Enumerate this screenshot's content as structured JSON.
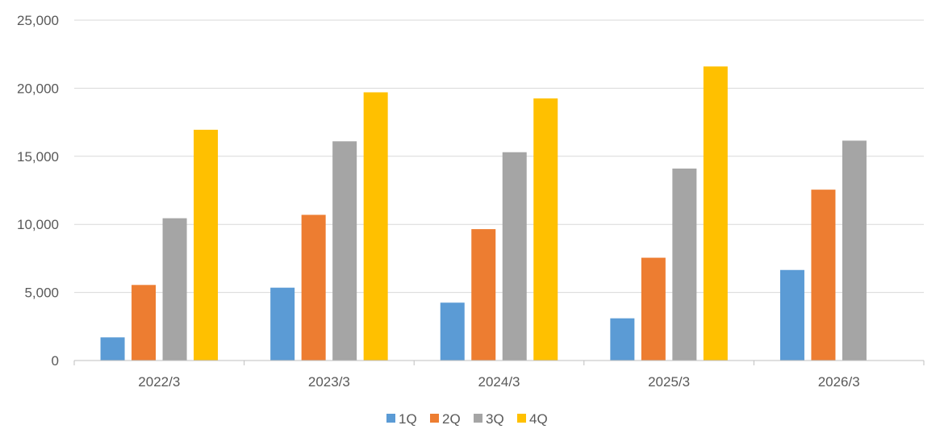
{
  "chart_data": {
    "type": "bar",
    "title": "",
    "xlabel": "",
    "ylabel": "",
    "categories": [
      "2022/3",
      "2023/3",
      "2024/3",
      "2025/3",
      "2026/3"
    ],
    "ylim": [
      0,
      25000
    ],
    "yticks": [
      0,
      5000,
      10000,
      15000,
      20000,
      25000
    ],
    "ytick_labels": [
      "0",
      "5,000",
      "10,000",
      "15,000",
      "20,000",
      "25,000"
    ],
    "grid": true,
    "legend_position": "bottom",
    "series": [
      {
        "name": "1Q",
        "color": "#5b9bd5",
        "values": [
          1700,
          5350,
          4250,
          3100,
          6650
        ]
      },
      {
        "name": "2Q",
        "color": "#ed7d31",
        "values": [
          5550,
          10700,
          9650,
          7550,
          12550
        ]
      },
      {
        "name": "3Q",
        "color": "#a5a5a5",
        "values": [
          10450,
          16100,
          15300,
          14100,
          16150
        ]
      },
      {
        "name": "4Q",
        "color": "#ffc000",
        "values": [
          16950,
          19700,
          19250,
          21600,
          null
        ]
      }
    ]
  }
}
